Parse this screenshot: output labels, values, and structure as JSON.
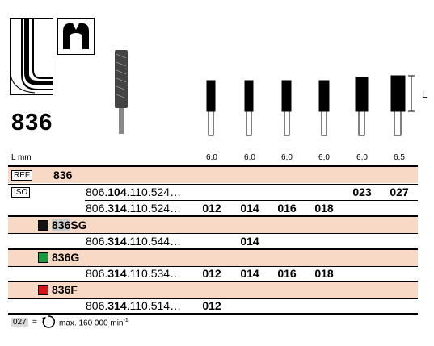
{
  "header": {
    "reference": "836",
    "dimension_label": "L"
  },
  "lengths": {
    "label": "L mm",
    "values": [
      "6,0",
      "6,0",
      "6,0",
      "6,0",
      "6,0",
      "6,5"
    ]
  },
  "variants": [
    {
      "ref_tag": "REF",
      "name": "836"
    },
    {
      "ref_tag": "ISO"
    }
  ],
  "rows": {
    "r1": {
      "code_plain": "806.",
      "code_bold": "104",
      "code_rest": ".110.524…",
      "cells": [
        "",
        "",
        "",
        "",
        "023",
        "027"
      ]
    },
    "r2": {
      "code_plain": "806.",
      "code_bold": "314",
      "code_rest": ".110.524…",
      "cells": [
        "012",
        "014",
        "016",
        "018",
        "",
        ""
      ]
    },
    "sg_head": {
      "ref": "836",
      "suffix": "SG",
      "color": "#111111"
    },
    "r3": {
      "code_plain": "806.",
      "code_bold": "314",
      "code_rest": ".110.544…",
      "cells": [
        "",
        "014",
        "",
        "",
        "",
        ""
      ]
    },
    "g_head": {
      "ref": "836",
      "suffix": "G",
      "color": "#1a9a3a"
    },
    "r4": {
      "code_plain": "806.",
      "code_bold": "314",
      "code_rest": ".110.534…",
      "cells": [
        "012",
        "014",
        "016",
        "018",
        "",
        ""
      ]
    },
    "f_head": {
      "ref": "836",
      "suffix": "F",
      "color": "#d4141c"
    },
    "r5": {
      "code_plain": "806.",
      "code_bold": "314",
      "code_rest": ".110.514…",
      "cells": [
        "012",
        "",
        "",
        "",
        "",
        ""
      ]
    }
  },
  "footer": {
    "code": "027",
    "equals": "=",
    "text": "max. 160 000 min",
    "exponent": "-1"
  },
  "colors": {
    "pink": "#f8d9c6",
    "row_shade": "#f8d9c6"
  }
}
